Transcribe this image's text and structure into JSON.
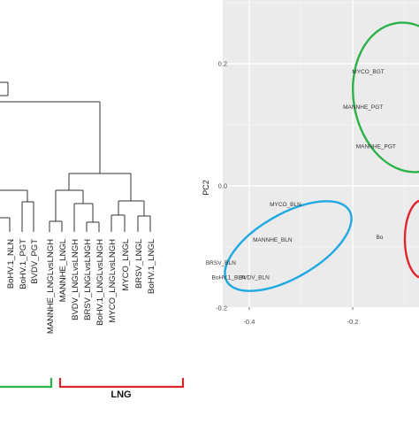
{
  "chart_data": [
    {
      "type": "dendrogram",
      "leaves": [
        "BoHV.1_NLN",
        "BoHV.1_PGT",
        "BVDV_PGT",
        "MANNHE_LNGLvsLNGH",
        "MANNHE_LNGL",
        "BVDV_LNGLvsLNGH",
        "BRSV_LNGLvsLNGH",
        "BoHV.1_LNGLvsLNGH",
        "MYCO_LNGLvsLNGH",
        "MYCO_LNGL",
        "BRSV_LNGL",
        "BoHV.1_LNGL"
      ],
      "brackets": [
        {
          "label": "",
          "color": "#2fb34a"
        },
        {
          "label": "LNG",
          "color": "#d9262b"
        }
      ]
    },
    {
      "type": "scatter",
      "ylabel": "PC2",
      "x_ticks": [
        "-0.4",
        "-0.2"
      ],
      "y_ticks": [
        "0.2",
        "0.0",
        "-0.2"
      ],
      "xlim": [
        -0.48,
        -0.14
      ],
      "ylim": [
        -0.245,
        0.255
      ],
      "grid": true,
      "points": [
        {
          "label": "MYCO_BLN",
          "x": -0.33,
          "y": -0.03
        },
        {
          "label": "MANNHE_BLN",
          "x": -0.355,
          "y": -0.0875
        },
        {
          "label": "BRSV_BLN",
          "x": -0.455,
          "y": -0.1255
        },
        {
          "label": "BoHV.1_BLN",
          "x": -0.44,
          "y": -0.149
        },
        {
          "label": "BVDV_BLN",
          "x": -0.39,
          "y": -0.149
        },
        {
          "label": "MYCO_BGT",
          "x": -0.17,
          "y": 0.1875
        },
        {
          "label": "MANNHE_PGT",
          "x": -0.18,
          "y": 0.1295
        },
        {
          "label": "MANNHE_PGT",
          "x": -0.155,
          "y": 0.0655
        },
        {
          "label": "Bo",
          "x": -0.148,
          "y": -0.0835
        }
      ],
      "ellipses": [
        {
          "color": "#1ea9e1"
        },
        {
          "color": "#2db24a"
        },
        {
          "color": "#e0262b"
        }
      ]
    }
  ]
}
